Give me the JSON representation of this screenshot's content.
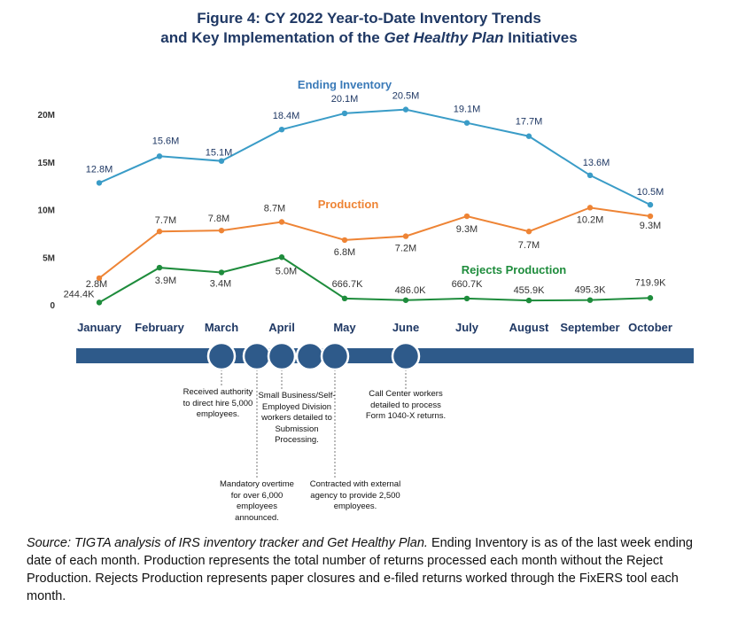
{
  "title": {
    "line1": "Figure 4:  CY 2022 Year-to-Date Inventory Trends",
    "line2_pre": "and Key Implementation of the ",
    "line2_italic": "Get Healthy Plan",
    "line2_post": " Initiatives"
  },
  "chart_data": {
    "type": "line",
    "categories": [
      "January",
      "February",
      "March",
      "April",
      "May",
      "June",
      "July",
      "August",
      "September",
      "October"
    ],
    "y_ticks": [
      {
        "value": 0,
        "label": "0"
      },
      {
        "value": 5000000,
        "label": "5M"
      },
      {
        "value": 10000000,
        "label": "10M"
      },
      {
        "value": 15000000,
        "label": "15M"
      },
      {
        "value": 20000000,
        "label": "20M"
      }
    ],
    "ylim": [
      0,
      20000000
    ],
    "grid": false,
    "series": [
      {
        "name": "Ending Inventory",
        "color": "#3a9cc7",
        "values": [
          12800000,
          15600000,
          15100000,
          18400000,
          20100000,
          20500000,
          19100000,
          17700000,
          13600000,
          10500000
        ],
        "labels": [
          "12.8M",
          "15.6M",
          "15.1M",
          "18.4M",
          "20.1M",
          "20.5M",
          "19.1M",
          "17.7M",
          "13.6M",
          "10.5M"
        ]
      },
      {
        "name": "Production",
        "color": "#ee8435",
        "values": [
          2800000,
          7700000,
          7800000,
          8700000,
          6800000,
          7200000,
          9300000,
          7700000,
          10200000,
          9300000
        ],
        "labels": [
          "2.8M",
          "7.7M",
          "7.8M",
          "8.7M",
          "6.8M",
          "7.2M",
          "9.3M",
          "7.7M",
          "10.2M",
          "9.3M"
        ]
      },
      {
        "name": "Rejects Production",
        "color": "#1e8c3c",
        "values": [
          244400,
          3900000,
          3400000,
          5000000,
          666700,
          486000,
          660700,
          455900,
          495300,
          719900
        ],
        "labels": [
          "244.4K",
          "3.9M",
          "3.4M",
          "5.0M",
          "666.7K",
          "486.0K",
          "660.7K",
          "455.9K",
          "495.3K",
          "719.9K"
        ]
      }
    ]
  },
  "timeline": {
    "bar_color": "#2e5a8a",
    "notes": [
      {
        "month": "March",
        "text": "Received authority to direct hire 5,000 employees."
      },
      {
        "month": "March",
        "text": "Mandatory overtime for over 6,000 employees announced."
      },
      {
        "month": "April",
        "text": "Small Business/Self-Employed Division workers detailed to Submission Processing."
      },
      {
        "month": "May",
        "text": "Contracted with external agency to provide 2,500 employees."
      },
      {
        "month": "June",
        "text": "Call Center workers detailed to process Form 1040-X returns."
      }
    ]
  },
  "source": {
    "italic": "Source:  TIGTA analysis of IRS inventory tracker and Get Healthy Plan.",
    "rest": "  Ending Inventory is as of the last week ending date of each month.  Production represents the total number of returns processed each month without the Reject Production.  Rejects Production represents paper closures and e-filed returns worked through the FixERS tool each month."
  }
}
